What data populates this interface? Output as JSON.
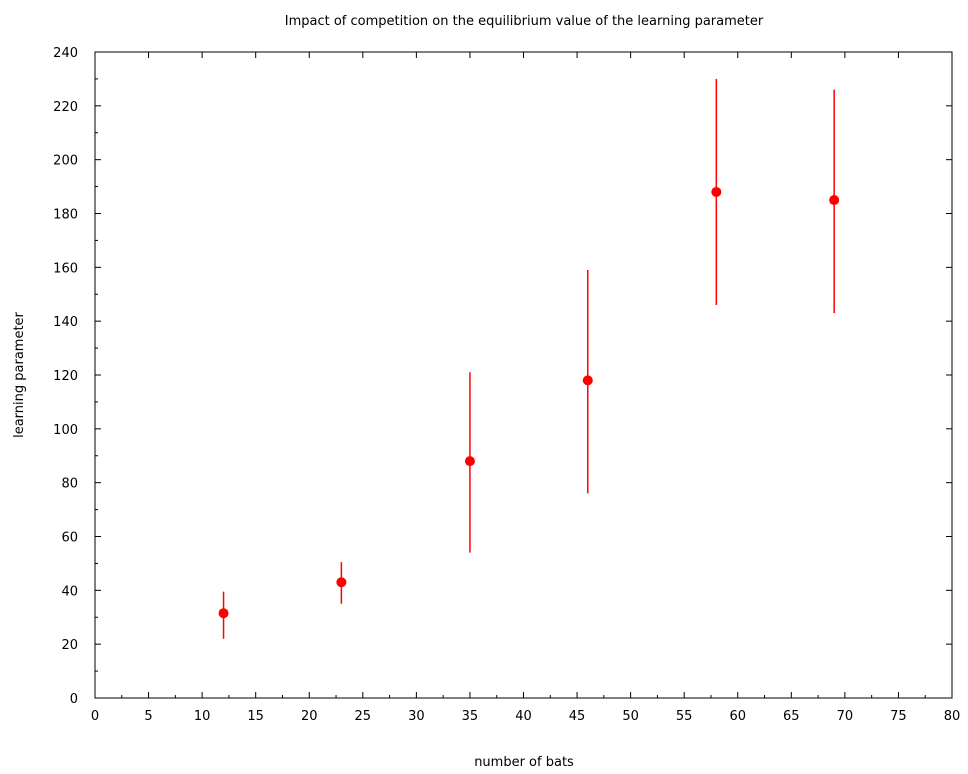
{
  "chart_data": {
    "type": "scatter",
    "title": "Impact of competition on the equilibrium value of the learning parameter",
    "xlabel": "number of bats",
    "ylabel": "learning parameter",
    "xlim": [
      0,
      80
    ],
    "ylim": [
      0,
      240
    ],
    "x_ticks": [
      0,
      5,
      10,
      15,
      20,
      25,
      30,
      35,
      40,
      45,
      50,
      55,
      60,
      65,
      70,
      75,
      80
    ],
    "y_ticks": [
      0,
      20,
      40,
      60,
      80,
      100,
      120,
      140,
      160,
      180,
      200,
      220,
      240
    ],
    "grid": false,
    "legend": "none",
    "series": [
      {
        "marker_color": "#ff0000",
        "points": [
          {
            "x": 12,
            "y": 31.5,
            "y_low": 22,
            "y_high": 39.5
          },
          {
            "x": 23,
            "y": 43,
            "y_low": 35,
            "y_high": 50.5
          },
          {
            "x": 35,
            "y": 88,
            "y_low": 54,
            "y_high": 121
          },
          {
            "x": 46,
            "y": 118,
            "y_low": 76,
            "y_high": 159
          },
          {
            "x": 58,
            "y": 188,
            "y_low": 146,
            "y_high": 230
          },
          {
            "x": 69,
            "y": 185,
            "y_low": 143,
            "y_high": 226
          }
        ]
      }
    ]
  }
}
